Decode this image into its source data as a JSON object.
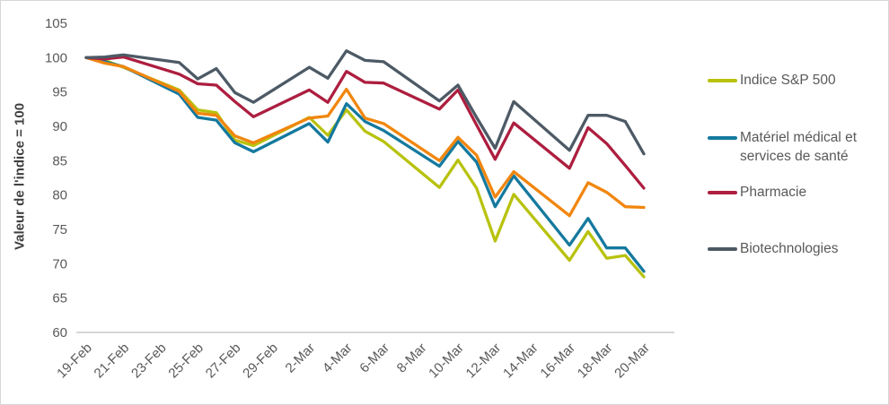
{
  "chart_data": {
    "type": "line",
    "ylabel": "Valeur de l'indice = 100",
    "ylim": [
      60,
      105
    ],
    "y_ticks": [
      60,
      65,
      70,
      75,
      80,
      85,
      90,
      95,
      100,
      105
    ],
    "x_tick_labels": [
      "19-Feb",
      "21-Feb",
      "23-Feb",
      "25-Feb",
      "27-Feb",
      "29-Feb",
      "2-Mar",
      "4-Mar",
      "6-Mar",
      "8-Mar",
      "10-Mar",
      "12-Mar",
      "14-Mar",
      "16-Mar",
      "18-Mar",
      "20-Mar"
    ],
    "x_tick_days": [
      0,
      2,
      4,
      6,
      8,
      10,
      12,
      14,
      16,
      18,
      20,
      22,
      24,
      26,
      28,
      30
    ],
    "x_dates": [
      "19-Feb",
      "20-Feb",
      "21-Feb",
      "24-Feb",
      "25-Feb",
      "26-Feb",
      "27-Feb",
      "28-Feb",
      "2-Mar",
      "3-Mar",
      "4-Mar",
      "5-Mar",
      "6-Mar",
      "9-Mar",
      "10-Mar",
      "11-Mar",
      "12-Mar",
      "13-Mar",
      "16-Mar",
      "17-Mar",
      "18-Mar",
      "19-Mar",
      "20-Mar"
    ],
    "day_offsets": [
      0,
      1,
      2,
      5,
      6,
      7,
      8,
      9,
      12,
      13,
      14,
      15,
      16,
      19,
      20,
      21,
      22,
      23,
      26,
      27,
      28,
      29,
      30
    ],
    "grid": false,
    "legend_position": "right",
    "series": [
      {
        "name": "Indice S&P 500",
        "color": "#b8c20e",
        "in_legend": true,
        "values": [
          100,
          99.6,
          98.6,
          95.3,
          92.4,
          92,
          88,
          87.2,
          91.3,
          88.7,
          92.4,
          89.3,
          87.8,
          81.1,
          85.1,
          81,
          73.3,
          80.1,
          70.5,
          74.7,
          70.8,
          71.2,
          68.1
        ]
      },
      {
        "name": "Matériel médical et services de santé",
        "color": "#15799e",
        "in_legend": true,
        "values": [
          100,
          99.4,
          98.7,
          94.7,
          91.3,
          90.9,
          87.6,
          86.3,
          90.4,
          87.7,
          93.3,
          90.7,
          89.4,
          84.2,
          87.8,
          84.8,
          78.3,
          82.8,
          72.7,
          76.6,
          72.3,
          72.3,
          68.9
        ]
      },
      {
        "name": "",
        "color": "#f1860e",
        "in_legend": false,
        "values": [
          100,
          99.2,
          98.7,
          95.1,
          91.9,
          91.6,
          88.6,
          87.6,
          91.2,
          91.5,
          95.4,
          91.2,
          90.4,
          85,
          88.4,
          85.8,
          79.7,
          83.4,
          77,
          81.8,
          80.4,
          78.3,
          78.2
        ]
      },
      {
        "name": "Pharmacie",
        "color": "#ad1e3f",
        "in_legend": true,
        "values": [
          100,
          99.8,
          100.1,
          97.6,
          96.2,
          96,
          93.6,
          91.4,
          95.3,
          93.5,
          98,
          96.4,
          96.3,
          92.5,
          95.3,
          90.2,
          85.2,
          90.5,
          83.9,
          89.8,
          87.5,
          84.3,
          81
        ]
      },
      {
        "name": "Biotechnologies",
        "color": "#4d5a66",
        "in_legend": true,
        "values": [
          100,
          100.1,
          100.4,
          99.3,
          96.9,
          98.4,
          94.9,
          93.5,
          98.6,
          97,
          101,
          99.6,
          99.4,
          93.7,
          96,
          91.3,
          86.8,
          93.6,
          86.5,
          91.6,
          91.6,
          90.7,
          86
        ]
      }
    ],
    "axis_line_color": "#c9c9c9"
  }
}
